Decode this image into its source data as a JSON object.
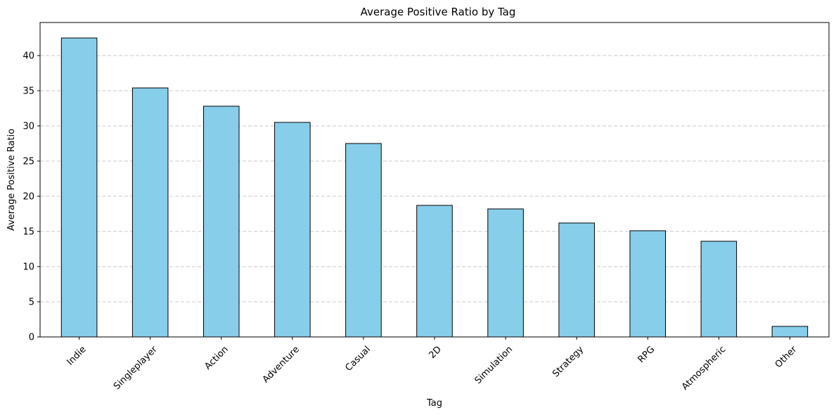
{
  "chart_data": {
    "type": "bar",
    "title": "Average Positive Ratio by Tag",
    "xlabel": "Tag",
    "ylabel": "Average Positive Ratio",
    "categories": [
      "Indie",
      "Singleplayer",
      "Action",
      "Adventure",
      "Casual",
      "2D",
      "Simulation",
      "Strategy",
      "RPG",
      "Atmospheric",
      "Other"
    ],
    "values": [
      42.5,
      35.4,
      32.8,
      30.5,
      27.5,
      18.7,
      18.2,
      16.2,
      15.1,
      13.6,
      1.5
    ],
    "ylim": [
      0,
      44.7
    ],
    "yticks": [
      0,
      5,
      10,
      15,
      20,
      25,
      30,
      35,
      40
    ],
    "grid": "y-dashed",
    "bar_color": "#87ceeb",
    "edge_color": "#000000",
    "grid_color": "#c8c8c8"
  }
}
